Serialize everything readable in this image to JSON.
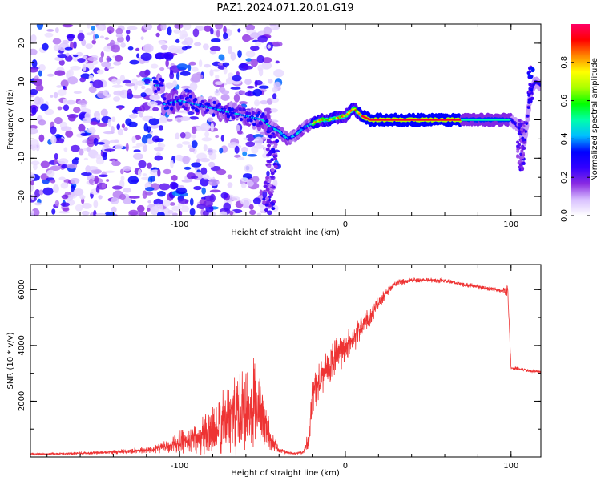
{
  "figure": {
    "title": "PAZ1.2024.071.20.01.G19"
  },
  "chart_data": [
    {
      "type": "heatmap",
      "xlabel": "Height of straight line (km)",
      "ylabel": "Frequency (Hz)",
      "xlim": [
        -190,
        118
      ],
      "ylim": [
        -25,
        25
      ],
      "xticks": [
        -100,
        0,
        100
      ],
      "yticks": [
        -20,
        -10,
        0,
        10,
        20
      ],
      "colorbar": {
        "label": "Normalized spectral amplitude",
        "range": [
          0,
          1
        ],
        "ticks": [
          "0.0",
          "0.2",
          "0.4",
          "0.6",
          "0.8"
        ],
        "colors": [
          "#ffffff",
          "#d8c0ff",
          "#8a2be2",
          "#3300ff",
          "#0000ff",
          "#00bfff",
          "#00ffaa",
          "#00ff00",
          "#aaff00",
          "#ffff00",
          "#ff8800",
          "#ff0000",
          "#ff0066"
        ]
      },
      "ridge": {
        "x": [
          -110,
          -100,
          -90,
          -80,
          -70,
          -60,
          -55,
          -50,
          -45,
          -40,
          -35,
          -30,
          -25,
          -20,
          -15,
          -10,
          -5,
          0,
          5,
          10,
          15,
          20,
          40,
          60,
          80,
          95,
          100,
          105,
          108,
          112,
          115,
          118
        ],
        "y": [
          4,
          5,
          4,
          3,
          2,
          1,
          0.5,
          0,
          -2,
          -3,
          -5,
          -4,
          -2,
          -1,
          0,
          0,
          0.5,
          1,
          3,
          1,
          0,
          0,
          0,
          0,
          0,
          0,
          0,
          -2,
          -6,
          8,
          10,
          9
        ]
      },
      "noise_region": {
        "x_range": [
          -190,
          -40
        ],
        "y_range": [
          -25,
          25
        ]
      }
    },
    {
      "type": "line",
      "xlabel": "Height of straight line (km)",
      "ylabel": "SNR (10 * v/v)",
      "xlim": [
        -190,
        118
      ],
      "ylim": [
        0,
        6900
      ],
      "xticks": [
        -100,
        0,
        100
      ],
      "yticks": [
        2000,
        4000,
        6000
      ],
      "color": "#ee3333",
      "series": [
        {
          "x": [
            -190,
            -170,
            -150,
            -130,
            -120,
            -110,
            -100,
            -90,
            -80,
            -75,
            -70,
            -65,
            -60,
            -55,
            -50,
            -45,
            -40,
            -35,
            -30,
            -25,
            -22,
            -20,
            -15,
            -10,
            -5,
            0,
            5,
            10,
            15,
            20,
            25,
            30,
            40,
            50,
            60,
            70,
            80,
            90,
            95,
            98,
            100,
            105,
            110,
            118
          ],
          "y": [
            100,
            120,
            150,
            200,
            250,
            350,
            500,
            700,
            900,
            1100,
            1400,
            1700,
            1900,
            2000,
            1500,
            600,
            250,
            150,
            120,
            200,
            700,
            2200,
            2800,
            3200,
            3700,
            3900,
            4300,
            4700,
            5000,
            5500,
            5900,
            6200,
            6350,
            6350,
            6300,
            6200,
            6100,
            6000,
            5950,
            6000,
            3200,
            3150,
            3100,
            3050
          ],
          "noise_amplitude": [
            40,
            50,
            60,
            100,
            150,
            250,
            450,
            700,
            1000,
            1300,
            1600,
            1900,
            2000,
            1900,
            1400,
            500,
            150,
            60,
            40,
            80,
            500,
            800,
            900,
            900,
            800,
            700,
            600,
            500,
            400,
            300,
            200,
            150,
            120,
            100,
            100,
            100,
            100,
            100,
            100,
            300,
            80,
            70,
            70,
            70
          ]
        }
      ]
    }
  ]
}
